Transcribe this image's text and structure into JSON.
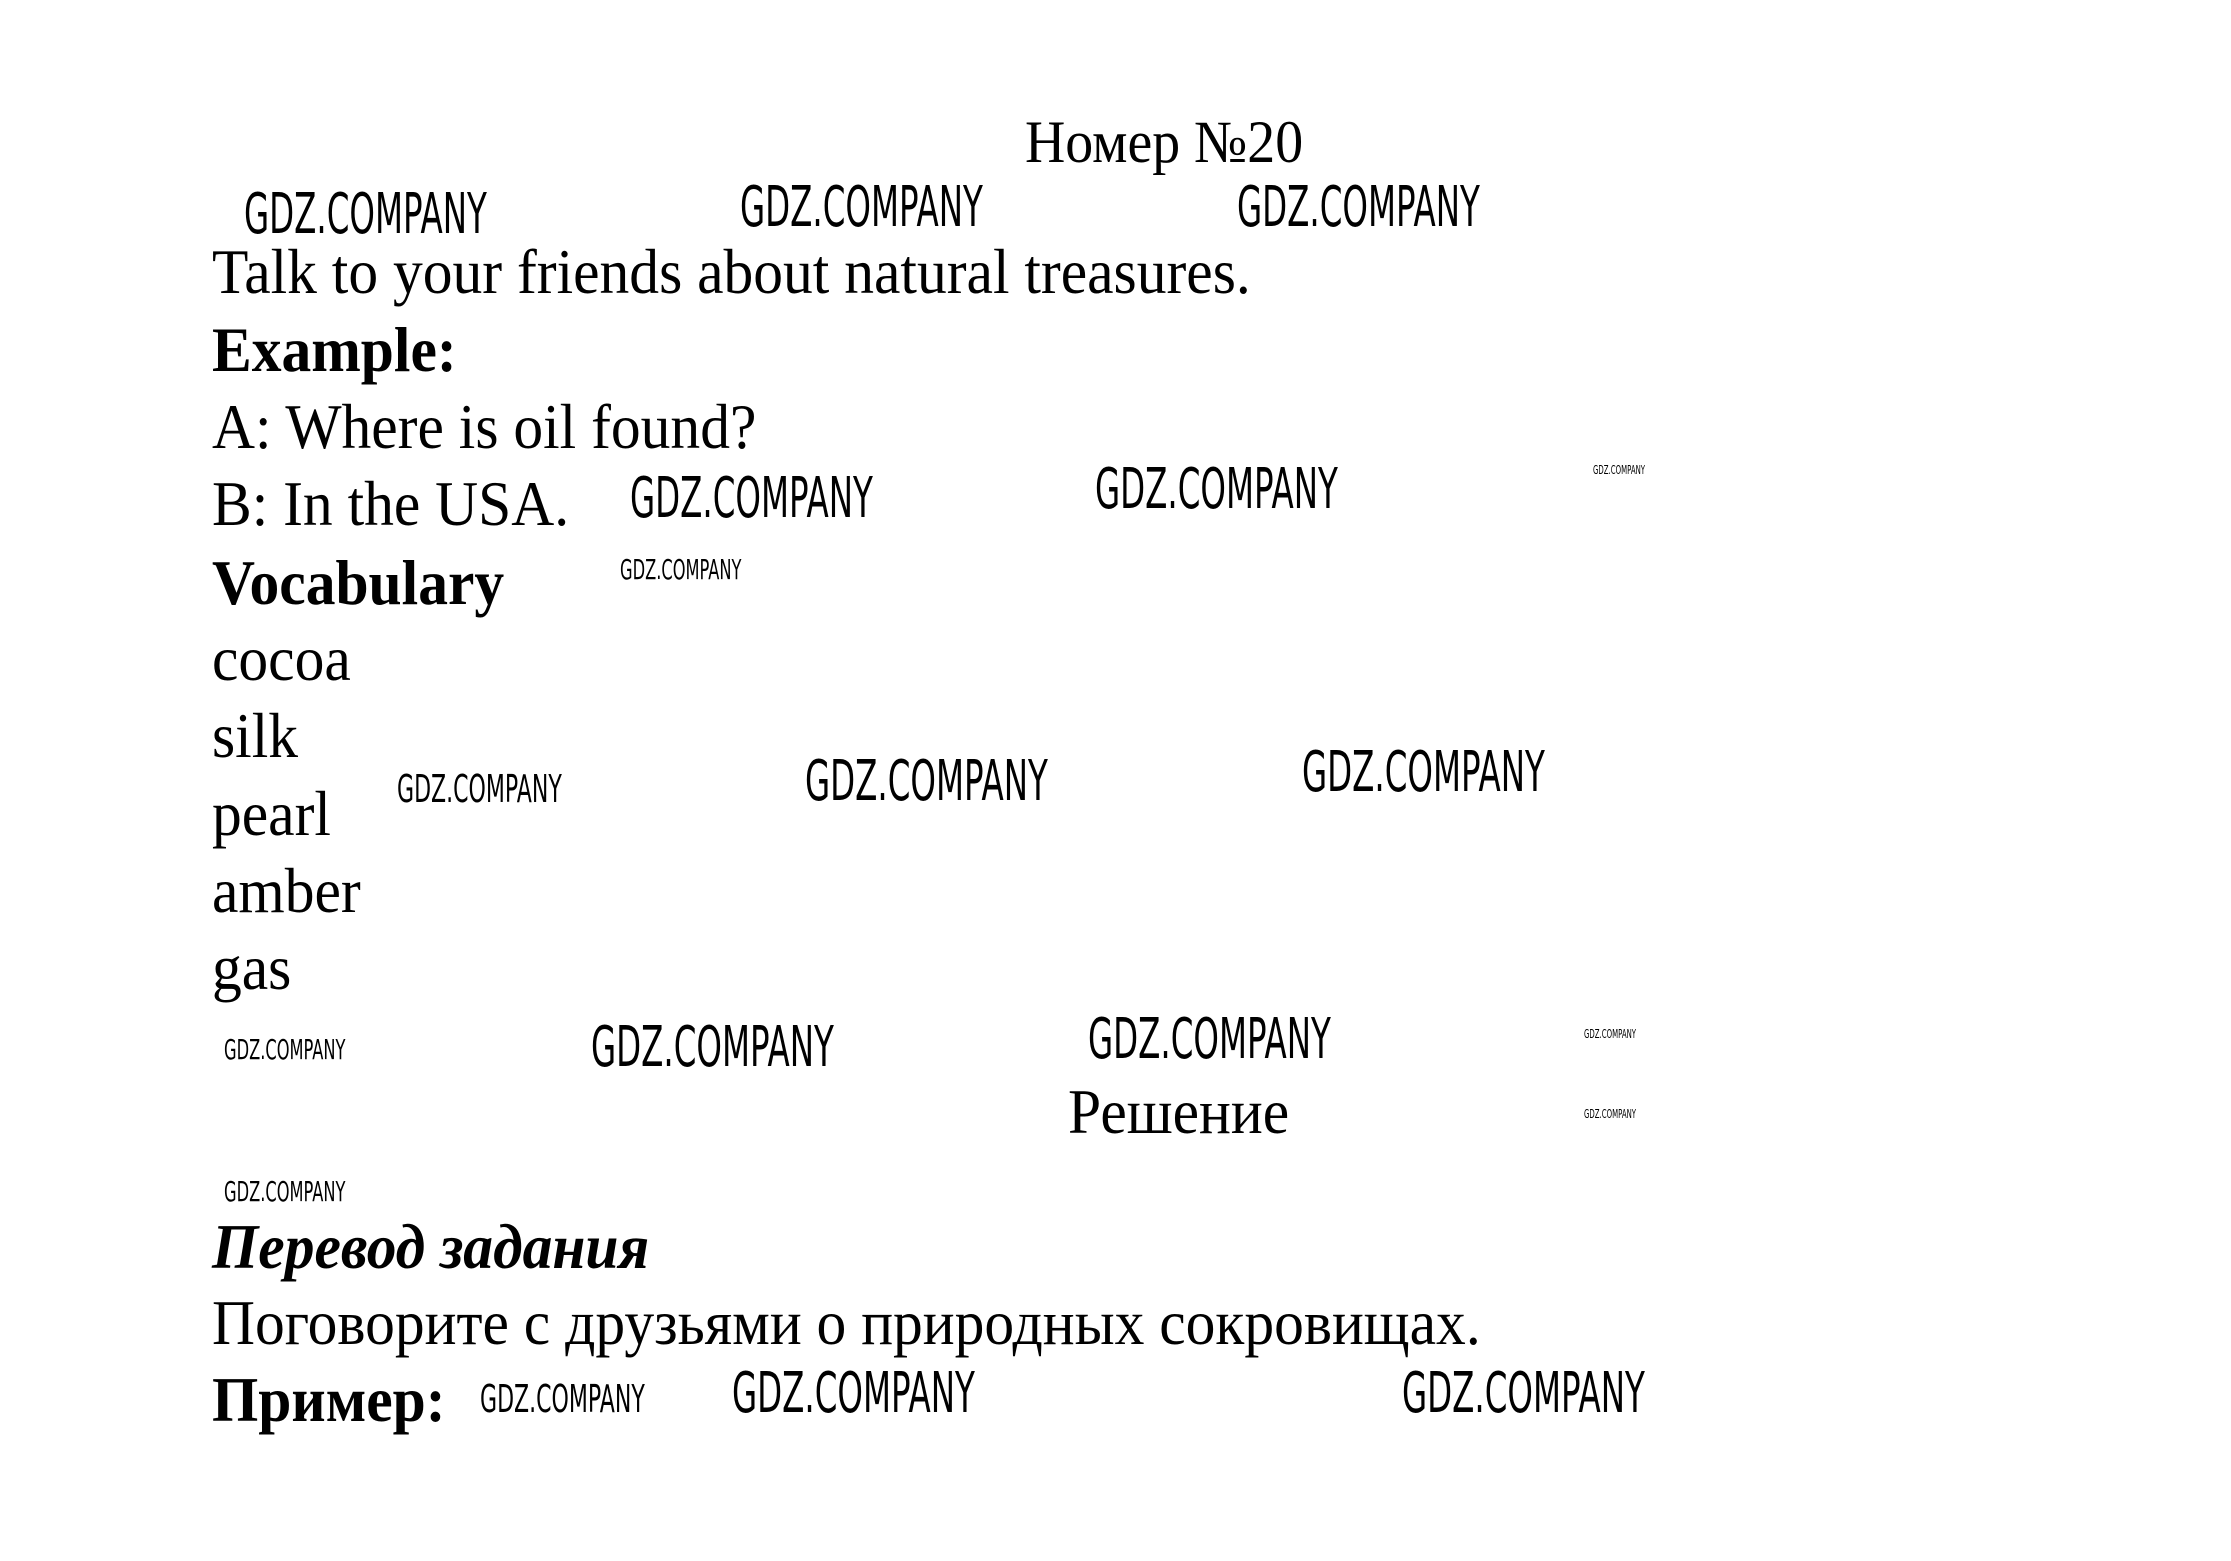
{
  "title": "Номер №20",
  "task": "Talk to your friends about natural treasures.",
  "example_heading": "Example:",
  "example_lines": [
    "A: Where is oil found?",
    "B: In the USA."
  ],
  "vocabulary_heading": "Vocabulary",
  "vocabulary": [
    "cocoa",
    "silk",
    "pearl",
    "amber",
    "gas"
  ],
  "solution_heading": "Решение",
  "translation_heading": "Перевод задания",
  "translation_text": "Поговорите с друзьями о природных сокровищах.",
  "translation_example_heading": "Пример:",
  "watermark": "GDZ.COMPANY"
}
